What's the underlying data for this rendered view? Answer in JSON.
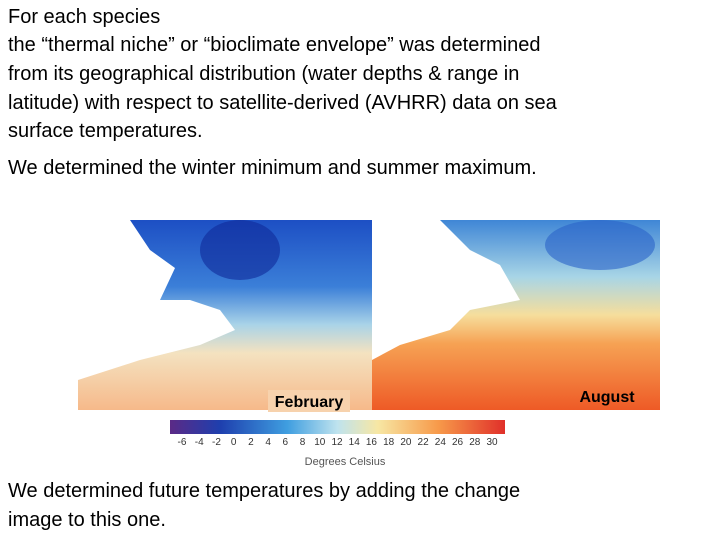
{
  "paragraphs": [
    [
      "For each species",
      "the “thermal niche” or “bioclimate envelope” was determined",
      "from its geographical distribution (water depths & range in",
      "latitude) with respect to satellite-derived (AVHRR) data on sea",
      "surface temperatures."
    ],
    [
      "We determined the winter minimum and summer maximum."
    ],
    [
      "We determined future temperatures by adding the change",
      "image to this one."
    ]
  ],
  "maps": [
    {
      "label": "February"
    },
    {
      "label": "August"
    }
  ],
  "colorbar": {
    "ticks": [
      -6,
      -4,
      -2,
      0,
      2,
      4,
      6,
      8,
      10,
      12,
      14,
      16,
      18,
      20,
      22,
      24,
      26,
      28,
      30
    ],
    "title": "Degrees Celsius"
  }
}
